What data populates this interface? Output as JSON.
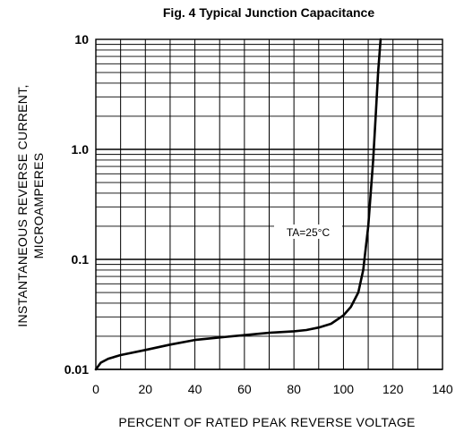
{
  "chart_data": {
    "type": "line",
    "title": "Fig. 4   Typical Junction Capacitance",
    "xlabel": "PERCENT OF RATED PEAK REVERSE VOLTAGE",
    "ylabel_line1": "INSTANTANEOUS  REVERSE  CURRENT,",
    "ylabel_line2": "MICROAMPERES",
    "xlim": [
      0,
      140
    ],
    "ylim": [
      0.01,
      10
    ],
    "y_scale": "log",
    "grid": true,
    "x_ticks": [
      "0",
      "20",
      "40",
      "60",
      "80",
      "100",
      "120",
      "140"
    ],
    "y_ticks": [
      "10",
      "1.0",
      "0.1",
      "0.01"
    ],
    "annotation": "TA=25°C",
    "series": [
      {
        "x": [
          0,
          2,
          5,
          10,
          20,
          30,
          40,
          50,
          60,
          70,
          80,
          85,
          90,
          95,
          100,
          103,
          106,
          108,
          110,
          112,
          113,
          114,
          115
        ],
        "y": [
          0.01,
          0.0115,
          0.0125,
          0.0135,
          0.015,
          0.0168,
          0.0185,
          0.0195,
          0.0205,
          0.0215,
          0.0222,
          0.0228,
          0.024,
          0.026,
          0.031,
          0.037,
          0.05,
          0.08,
          0.2,
          0.8,
          2.0,
          5.0,
          10
        ]
      }
    ]
  }
}
